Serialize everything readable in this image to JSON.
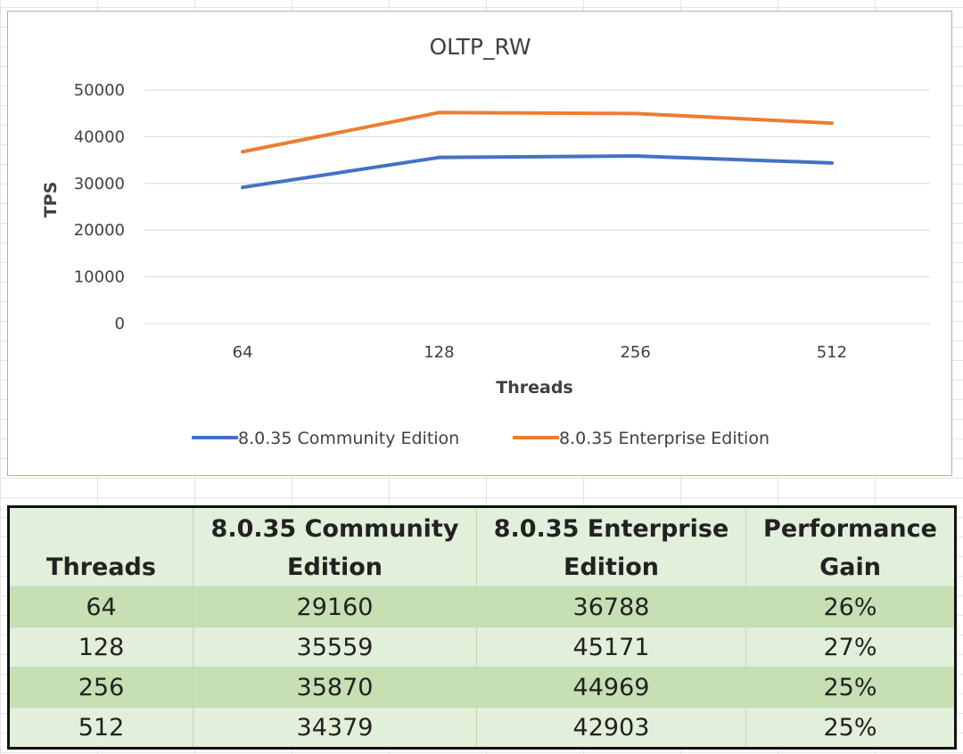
{
  "chart_data": {
    "type": "line",
    "title": "OLTP_RW",
    "xlabel": "Threads",
    "ylabel": "TPS",
    "categories": [
      "64",
      "128",
      "256",
      "512"
    ],
    "ylim": [
      0,
      50000
    ],
    "yticks": [
      0,
      10000,
      20000,
      30000,
      40000,
      50000
    ],
    "grid": true,
    "legend_position": "bottom",
    "series": [
      {
        "name": "8.0.35 Community Edition",
        "color": "#4472c4",
        "values": [
          29160,
          35559,
          35870,
          34379
        ]
      },
      {
        "name": "8.0.35 Enterprise Edition",
        "color": "#ed7d31",
        "values": [
          36788,
          45171,
          44969,
          42903
        ]
      }
    ]
  },
  "table": {
    "headers": [
      [
        "Threads"
      ],
      [
        "8.0.35 Community",
        "Edition"
      ],
      [
        "8.0.35 Enterprise",
        "Edition"
      ],
      [
        "Performance",
        "Gain"
      ]
    ],
    "rows": [
      [
        "64",
        "29160",
        "36788",
        "26%"
      ],
      [
        "128",
        "35559",
        "45171",
        "27%"
      ],
      [
        "256",
        "35870",
        "44969",
        "25%"
      ],
      [
        "512",
        "34379",
        "42903",
        "25%"
      ]
    ]
  }
}
